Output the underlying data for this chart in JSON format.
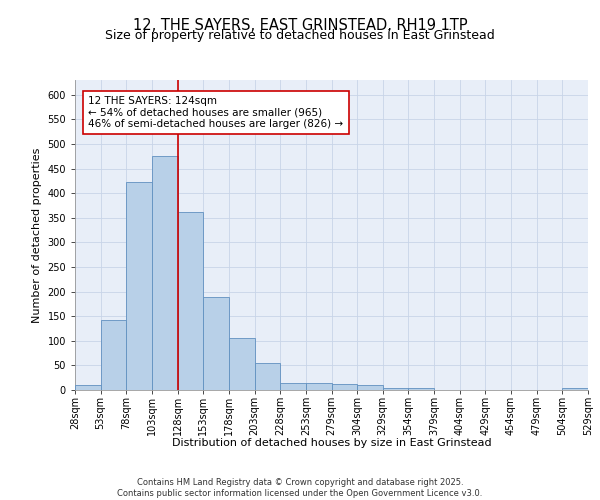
{
  "title1": "12, THE SAYERS, EAST GRINSTEAD, RH19 1TP",
  "title2": "Size of property relative to detached houses in East Grinstead",
  "xlabel": "Distribution of detached houses by size in East Grinstead",
  "ylabel": "Number of detached properties",
  "bar_values": [
    10,
    143,
    423,
    475,
    362,
    190,
    105,
    54,
    15,
    15,
    12,
    10,
    5,
    5,
    0,
    0,
    0,
    0,
    0,
    5
  ],
  "bin_labels": [
    "28sqm",
    "53sqm",
    "78sqm",
    "103sqm",
    "128sqm",
    "153sqm",
    "178sqm",
    "203sqm",
    "228sqm",
    "253sqm",
    "279sqm",
    "304sqm",
    "329sqm",
    "354sqm",
    "379sqm",
    "404sqm",
    "429sqm",
    "454sqm",
    "479sqm",
    "504sqm",
    "529sqm"
  ],
  "bar_color": "#b8d0e8",
  "bar_edge_color": "#6090c0",
  "bar_linewidth": 0.6,
  "vline_color": "#cc0000",
  "vline_linewidth": 1.2,
  "vline_bin": 4,
  "annotation_text": "12 THE SAYERS: 124sqm\n← 54% of detached houses are smaller (965)\n46% of semi-detached houses are larger (826) →",
  "annotation_box_color": "#ffffff",
  "annotation_box_edge": "#cc0000",
  "ylim": [
    0,
    630
  ],
  "yticks": [
    0,
    50,
    100,
    150,
    200,
    250,
    300,
    350,
    400,
    450,
    500,
    550,
    600
  ],
  "grid_color": "#c8d4e8",
  "background_color": "#e8eef8",
  "footer_text": "Contains HM Land Registry data © Crown copyright and database right 2025.\nContains public sector information licensed under the Open Government Licence v3.0.",
  "title1_fontsize": 10.5,
  "title2_fontsize": 9,
  "xlabel_fontsize": 8,
  "ylabel_fontsize": 8,
  "tick_fontsize": 7,
  "annotation_fontsize": 7.5,
  "footer_fontsize": 6
}
